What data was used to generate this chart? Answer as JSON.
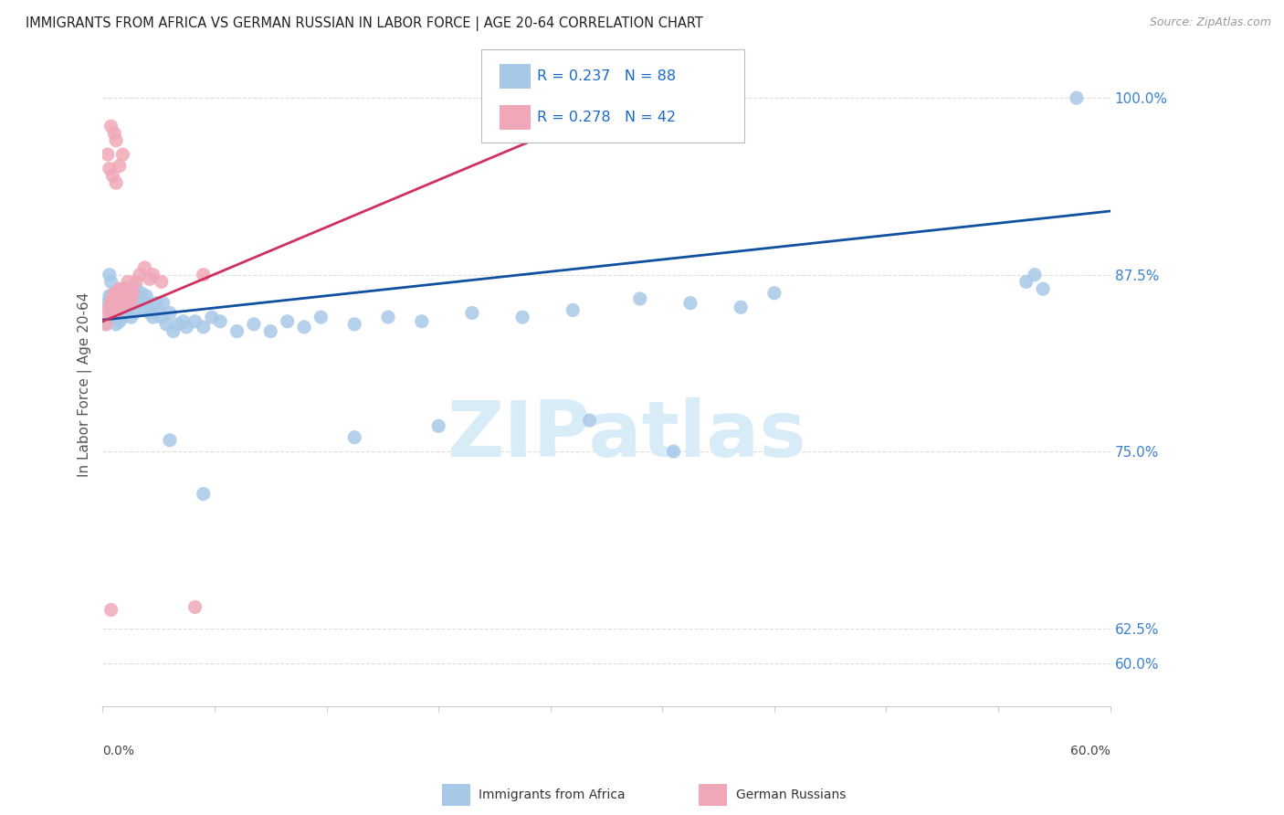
{
  "title": "IMMIGRANTS FROM AFRICA VS GERMAN RUSSIAN IN LABOR FORCE | AGE 20-64 CORRELATION CHART",
  "source": "Source: ZipAtlas.com",
  "ylabel": "In Labor Force | Age 20-64",
  "legend_blue_r": "R = 0.237",
  "legend_blue_n": "N = 88",
  "legend_pink_r": "R = 0.278",
  "legend_pink_n": "N = 42",
  "legend_blue_label": "Immigrants from Africa",
  "legend_pink_label": "German Russians",
  "blue_color": "#A8C8E8",
  "pink_color": "#F0A8B8",
  "blue_line_color": "#1050A0",
  "pink_line_color": "#D03060",
  "legend_text_color": "#1A6ACA",
  "title_color": "#222222",
  "watermark_text": "ZIPatlas",
  "watermark_color": "#D8ECF8",
  "grid_color": "#DDDDDD",
  "right_axis_color": "#3A80D0",
  "xmin": 0.0,
  "xmax": 0.6,
  "ymin": 0.57,
  "ymax": 1.025,
  "ytick_vals": [
    0.6,
    0.625,
    0.75,
    0.875,
    1.0
  ],
  "ytick_labels": [
    "60.0%",
    "62.5%",
    "75.0%",
    "87.5%",
    "100.0%"
  ],
  "blue_x": [
    0.002,
    0.003,
    0.004,
    0.004,
    0.005,
    0.005,
    0.005,
    0.006,
    0.006,
    0.007,
    0.007,
    0.007,
    0.008,
    0.008,
    0.008,
    0.009,
    0.009,
    0.01,
    0.01,
    0.01,
    0.011,
    0.011,
    0.012,
    0.012,
    0.012,
    0.013,
    0.013,
    0.014,
    0.014,
    0.015,
    0.015,
    0.016,
    0.016,
    0.017,
    0.017,
    0.018,
    0.019,
    0.02,
    0.02,
    0.021,
    0.022,
    0.023,
    0.024,
    0.025,
    0.026,
    0.027,
    0.028,
    0.03,
    0.032,
    0.033,
    0.035,
    0.036,
    0.038,
    0.04,
    0.042,
    0.045,
    0.048,
    0.05,
    0.055,
    0.06,
    0.065,
    0.07,
    0.08,
    0.09,
    0.1,
    0.11,
    0.12,
    0.13,
    0.15,
    0.17,
    0.19,
    0.22,
    0.25,
    0.28,
    0.32,
    0.35,
    0.4,
    0.38,
    0.55,
    0.555,
    0.56,
    0.04,
    0.06,
    0.15,
    0.2,
    0.29,
    0.34,
    0.58
  ],
  "blue_y": [
    0.84,
    0.855,
    0.86,
    0.875,
    0.87,
    0.86,
    0.855,
    0.852,
    0.848,
    0.858,
    0.862,
    0.845,
    0.85,
    0.84,
    0.858,
    0.845,
    0.855,
    0.842,
    0.85,
    0.862,
    0.848,
    0.855,
    0.845,
    0.855,
    0.865,
    0.85,
    0.86,
    0.855,
    0.848,
    0.858,
    0.865,
    0.862,
    0.855,
    0.86,
    0.845,
    0.855,
    0.848,
    0.858,
    0.865,
    0.86,
    0.855,
    0.862,
    0.85,
    0.855,
    0.86,
    0.855,
    0.848,
    0.845,
    0.855,
    0.85,
    0.845,
    0.855,
    0.84,
    0.848,
    0.835,
    0.84,
    0.842,
    0.838,
    0.842,
    0.838,
    0.845,
    0.842,
    0.835,
    0.84,
    0.835,
    0.842,
    0.838,
    0.845,
    0.84,
    0.845,
    0.842,
    0.848,
    0.845,
    0.85,
    0.858,
    0.855,
    0.862,
    0.852,
    0.87,
    0.875,
    0.865,
    0.758,
    0.72,
    0.76,
    0.768,
    0.772,
    0.75,
    1.0
  ],
  "pink_x": [
    0.002,
    0.003,
    0.004,
    0.005,
    0.005,
    0.006,
    0.006,
    0.007,
    0.007,
    0.008,
    0.008,
    0.009,
    0.009,
    0.01,
    0.01,
    0.011,
    0.012,
    0.012,
    0.013,
    0.015,
    0.015,
    0.016,
    0.017,
    0.018,
    0.02,
    0.022,
    0.025,
    0.028,
    0.03,
    0.035,
    0.003,
    0.004,
    0.006,
    0.008,
    0.01,
    0.012,
    0.008,
    0.005,
    0.007,
    0.06,
    0.005,
    0.055
  ],
  "pink_y": [
    0.84,
    0.848,
    0.852,
    0.855,
    0.848,
    0.858,
    0.85,
    0.862,
    0.855,
    0.848,
    0.858,
    0.852,
    0.86,
    0.855,
    0.865,
    0.86,
    0.858,
    0.862,
    0.855,
    0.865,
    0.87,
    0.858,
    0.855,
    0.862,
    0.87,
    0.875,
    0.88,
    0.872,
    0.875,
    0.87,
    0.96,
    0.95,
    0.945,
    0.94,
    0.952,
    0.96,
    0.97,
    0.98,
    0.975,
    0.875,
    0.638,
    0.64
  ],
  "blue_R": 0.237,
  "pink_R": 0.278,
  "blue_N": 88,
  "pink_N": 42
}
